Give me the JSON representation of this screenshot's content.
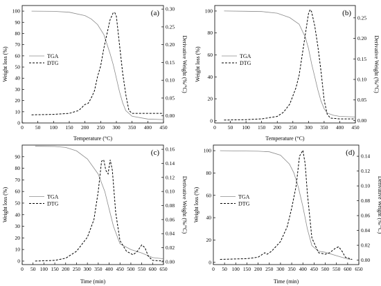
{
  "chart_data": [
    {
      "type": "line",
      "panel_label": "(a)",
      "xlabel": "Temperature (°C)",
      "ylabel": "Weight loss (%)",
      "y2label": "Derivative Weight (%/°C)",
      "xlim": [
        0,
        450
      ],
      "ylim": [
        0,
        105
      ],
      "y2lim": [
        -0.02,
        0.31
      ],
      "xticks": [
        "0",
        "50",
        "100",
        "150",
        "200",
        "250",
        "300",
        "350",
        "400",
        "450"
      ],
      "yticks": [
        "0",
        "10",
        "20",
        "30",
        "40",
        "50",
        "60",
        "70",
        "80",
        "90",
        "100"
      ],
      "y2ticks": [
        "0.00",
        "0.05",
        "0.10",
        "0.15",
        "0.20",
        "0.25",
        "0.30"
      ],
      "legend_position": "left",
      "series": [
        {
          "name": "TGA",
          "axis": "left",
          "style": "solid",
          "x": [
            30,
            100,
            150,
            200,
            220,
            240,
            260,
            280,
            290,
            300,
            310,
            320,
            330,
            350,
            400,
            450
          ],
          "y": [
            100,
            99.8,
            99,
            96,
            93,
            88,
            79,
            62,
            52,
            40,
            28,
            18,
            11,
            6,
            3.5,
            3
          ]
        },
        {
          "name": "DTG",
          "axis": "right",
          "style": "dashed",
          "x": [
            30,
            100,
            150,
            180,
            200,
            210,
            220,
            230,
            240,
            250,
            260,
            270,
            280,
            290,
            295,
            300,
            310,
            320,
            330,
            340,
            350,
            400,
            450
          ],
          "y": [
            0.003,
            0.004,
            0.007,
            0.015,
            0.032,
            0.035,
            0.05,
            0.07,
            0.11,
            0.14,
            0.19,
            0.23,
            0.27,
            0.29,
            0.29,
            0.28,
            0.2,
            0.12,
            0.06,
            0.015,
            0.007,
            0.007,
            0.007
          ]
        }
      ]
    },
    {
      "type": "line",
      "panel_label": "(b)",
      "xlabel": "Temperature (°C)",
      "ylabel": "Weight loss (%)",
      "y2label": "Derivative Weight (%/°C)",
      "xlim": [
        0,
        450
      ],
      "ylim": [
        -2,
        105
      ],
      "y2lim": [
        -0.006,
        0.28
      ],
      "xticks": [
        "0",
        "50",
        "100",
        "150",
        "200",
        "250",
        "300",
        "350",
        "400",
        "450"
      ],
      "yticks": [
        "0",
        "20",
        "40",
        "60",
        "80",
        "100"
      ],
      "y2ticks": [
        "0.00",
        "0.05",
        "0.10",
        "0.15",
        "0.20",
        "0.25"
      ],
      "legend_position": "left",
      "series": [
        {
          "name": "TGA",
          "axis": "left",
          "style": "solid",
          "x": [
            30,
            100,
            150,
            200,
            240,
            270,
            290,
            300,
            310,
            320,
            330,
            340,
            350,
            360,
            380,
            400,
            450
          ],
          "y": [
            100,
            99.8,
            99.5,
            98,
            94,
            88,
            76,
            66,
            52,
            40,
            28,
            18,
            11,
            7,
            5,
            4,
            3.5
          ]
        },
        {
          "name": "DTG",
          "axis": "right",
          "style": "dashed",
          "x": [
            30,
            100,
            150,
            200,
            220,
            240,
            260,
            270,
            280,
            290,
            300,
            305,
            310,
            320,
            330,
            340,
            350,
            360,
            370,
            400,
            450
          ],
          "y": [
            0.001,
            0.002,
            0.004,
            0.01,
            0.02,
            0.04,
            0.08,
            0.11,
            0.16,
            0.21,
            0.26,
            0.27,
            0.265,
            0.23,
            0.18,
            0.12,
            0.05,
            0.015,
            0.006,
            0.004,
            0.004
          ]
        }
      ]
    },
    {
      "type": "line",
      "panel_label": "(c)",
      "xlabel": "Time (min)",
      "ylabel": "Weight loss (%)",
      "y2label": "Derivative Weight (%/°C)",
      "xlim": [
        0,
        650
      ],
      "ylim": [
        -3,
        100
      ],
      "y2lim": [
        -0.004,
        0.166
      ],
      "xticks": [
        "0",
        "50",
        "100",
        "150",
        "200",
        "250",
        "300",
        "350",
        "400",
        "450",
        "500",
        "550",
        "600",
        "650"
      ],
      "yticks": [
        "0",
        "10",
        "20",
        "30",
        "40",
        "50",
        "60",
        "70",
        "80",
        "90"
      ],
      "y2ticks": [
        "0.00",
        "0.02",
        "0.04",
        "0.06",
        "0.08",
        "0.10",
        "0.12",
        "0.14",
        "0.16"
      ],
      "legend_position": "left",
      "series": [
        {
          "name": "TGA",
          "axis": "left",
          "style": "solid",
          "x": [
            60,
            150,
            200,
            250,
            300,
            350,
            380,
            400,
            420,
            450,
            500,
            550,
            600,
            650
          ],
          "y": [
            99,
            98.8,
            98,
            95,
            88,
            75,
            60,
            45,
            30,
            15,
            10,
            7,
            3,
            2
          ]
        },
        {
          "name": "DTG",
          "axis": "right",
          "style": "dashed",
          "x": [
            60,
            150,
            200,
            250,
            300,
            330,
            350,
            365,
            375,
            385,
            395,
            405,
            415,
            430,
            450,
            480,
            510,
            530,
            550,
            565,
            580,
            600,
            650
          ],
          "y": [
            0.001,
            0.002,
            0.005,
            0.015,
            0.035,
            0.06,
            0.1,
            0.143,
            0.145,
            0.13,
            0.125,
            0.145,
            0.13,
            0.07,
            0.03,
            0.015,
            0.01,
            0.015,
            0.024,
            0.02,
            0.008,
            0.002,
            0.001
          ]
        }
      ]
    },
    {
      "type": "line",
      "panel_label": "(d)",
      "xlabel": "Time (min)",
      "ylabel": "Weight loss (%)",
      "y2label": "Derivative Weight (%/°C)",
      "xlim": [
        0,
        650
      ],
      "ylim": [
        -2,
        105
      ],
      "y2lim": [
        -0.006,
        0.155
      ],
      "xticks": [
        "0",
        "50",
        "100",
        "150",
        "200",
        "250",
        "300",
        "350",
        "400",
        "450",
        "500",
        "550",
        "600",
        "650"
      ],
      "yticks": [
        "0",
        "20",
        "40",
        "60",
        "80",
        "100"
      ],
      "y2ticks": [
        "0.00",
        "0.02",
        "0.04",
        "0.06",
        "0.08",
        "0.10",
        "0.12",
        "0.14"
      ],
      "legend_position": "left",
      "series": [
        {
          "name": "TGA",
          "axis": "left",
          "style": "solid",
          "x": [
            30,
            200,
            250,
            300,
            340,
            360,
            380,
            400,
            420,
            440,
            470,
            500,
            550,
            600,
            620
          ],
          "y": [
            100,
            99.5,
            99,
            96,
            88,
            80,
            67,
            50,
            30,
            15,
            10,
            9,
            6,
            3,
            2.5
          ]
        },
        {
          "name": "DTG",
          "axis": "right",
          "style": "dashed",
          "x": [
            30,
            150,
            200,
            220,
            230,
            240,
            260,
            300,
            330,
            350,
            370,
            385,
            400,
            410,
            420,
            440,
            470,
            500,
            520,
            545,
            560,
            575,
            590,
            620
          ],
          "y": [
            0.001,
            0.002,
            0.004,
            0.008,
            0.01,
            0.008,
            0.012,
            0.025,
            0.045,
            0.07,
            0.1,
            0.14,
            0.148,
            0.13,
            0.09,
            0.03,
            0.01,
            0.008,
            0.01,
            0.016,
            0.018,
            0.012,
            0.004,
            0.001
          ]
        }
      ]
    }
  ]
}
